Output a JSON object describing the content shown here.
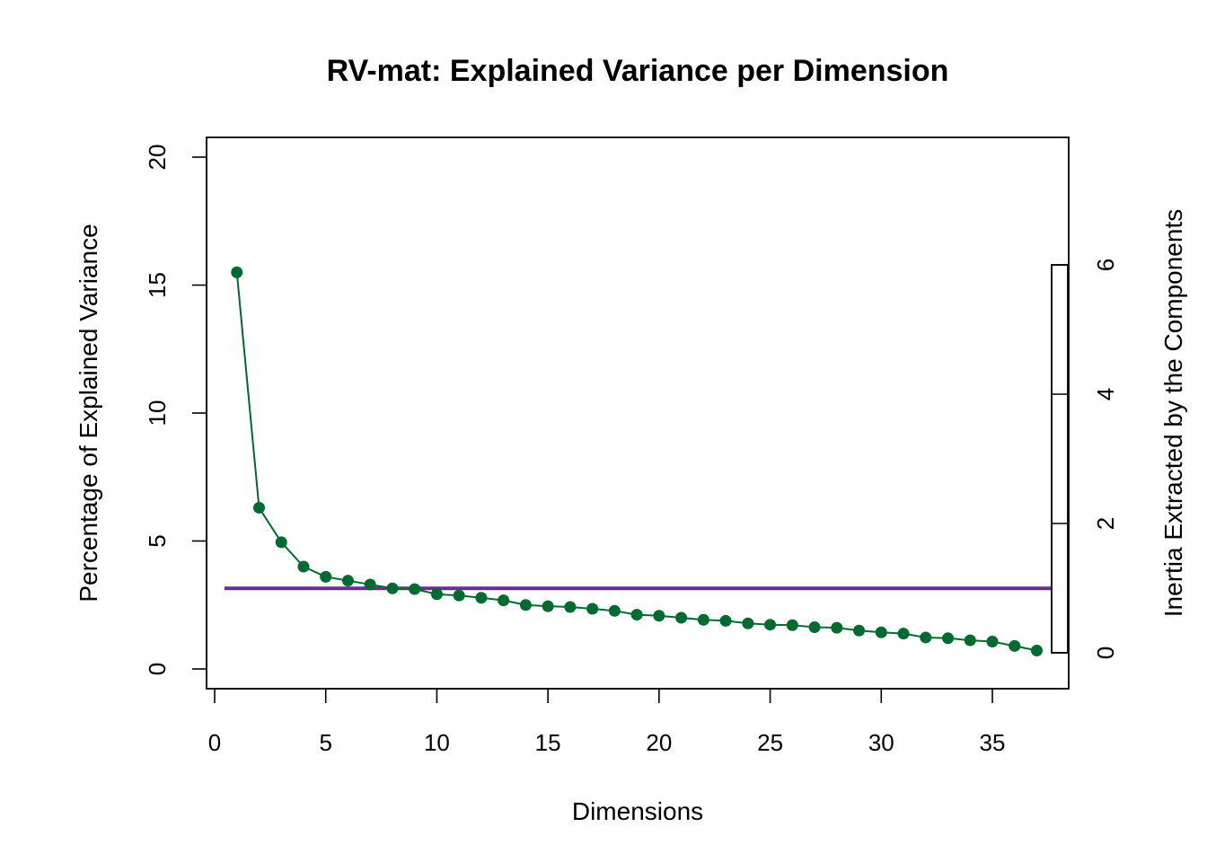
{
  "chart_data": {
    "type": "line",
    "title": "RV-mat: Explained Variance per Dimension",
    "xlabel": "Dimensions",
    "ylabel": "Percentage of Explained Variance",
    "y2label": "Inertia Extracted by the Components",
    "xlim": [
      0,
      38
    ],
    "ylim": [
      0,
      20
    ],
    "y2lim": [
      0,
      6
    ],
    "x_ticks": [
      0,
      5,
      10,
      15,
      20,
      25,
      30,
      35
    ],
    "y_ticks": [
      0,
      5,
      10,
      15,
      20
    ],
    "y2_ticks": [
      0,
      2,
      4,
      6
    ],
    "grid": false,
    "series": [
      {
        "color": "#006b2e",
        "x": [
          1,
          2,
          3,
          4,
          5,
          6,
          7,
          8,
          9,
          10,
          11,
          12,
          13,
          14,
          15,
          16,
          17,
          18,
          19,
          20,
          21,
          22,
          23,
          24,
          25,
          26,
          27,
          28,
          29,
          30,
          31,
          32,
          33,
          34,
          35,
          36,
          37
        ],
        "values": [
          15.5,
          6.3,
          4.95,
          4.0,
          3.6,
          3.45,
          3.3,
          3.15,
          3.12,
          2.92,
          2.87,
          2.78,
          2.68,
          2.5,
          2.45,
          2.42,
          2.35,
          2.27,
          2.12,
          2.08,
          2.0,
          1.92,
          1.88,
          1.78,
          1.73,
          1.71,
          1.63,
          1.61,
          1.5,
          1.43,
          1.38,
          1.23,
          1.2,
          1.12,
          1.07,
          0.9,
          0.72
        ]
      }
    ],
    "reference_line": {
      "y": 3.15,
      "color": "#6a2c91"
    }
  }
}
